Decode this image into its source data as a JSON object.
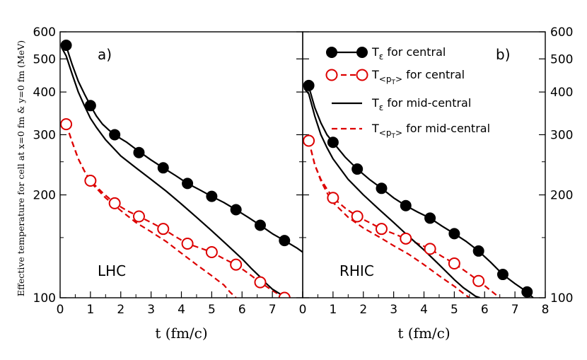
{
  "chart_data": {
    "type": "line",
    "y_scale": "log",
    "ylabel": "Effective temperature for cell at x=0 fm & y=0 fm (MeV)",
    "y_ticks": [
      100,
      200,
      300,
      400,
      500,
      600
    ],
    "ylim": [
      100,
      600
    ],
    "legend": {
      "position": "top-right",
      "entries": [
        {
          "main": "T",
          "sub": "ε",
          "suffix": " for central",
          "color": "#000000",
          "dash": "solid",
          "marker": "filled-circle"
        },
        {
          "main": "T",
          "sub": "<p",
          "subsub": "T",
          "subclose": ">",
          "suffix": " for central",
          "color": "#dd0000",
          "dash": "dashed",
          "marker": "open-circle"
        },
        {
          "main": "T",
          "sub": "ε",
          "suffix": " for mid-central",
          "color": "#000000",
          "dash": "solid",
          "marker": "none"
        },
        {
          "main": "T",
          "sub": "<p",
          "subsub": "T",
          "subclose": ">",
          "suffix": " for mid-central",
          "color": "#dd0000",
          "dash": "dashed",
          "marker": "none"
        }
      ]
    },
    "panels": [
      {
        "id": "a",
        "tag": "a)",
        "collider": "LHC",
        "xlabel": "t (fm/c)",
        "xlim": [
          0,
          8
        ],
        "x_tick_labels": [
          "0",
          "1",
          "2",
          "3",
          "4",
          "5",
          "6",
          "7"
        ],
        "series": [
          {
            "name": "T_eps central",
            "x": [
              0.05,
              0.2,
              0.4,
              0.6,
              0.8,
              1.0,
              1.2,
              1.4,
              1.6,
              1.8,
              2.0,
              2.2,
              2.6,
              3.0,
              3.4,
              3.8,
              4.2,
              4.6,
              5.0,
              5.4,
              5.8,
              6.2,
              6.6,
              7.0,
              7.4,
              7.8,
              8.0
            ],
            "y": [
              560,
              545,
              480,
              430,
              395,
              365,
              340,
              322,
              310,
              300,
              292,
              285,
              268,
              253,
              240,
              228,
              216,
              207,
              198,
              190,
              181,
              172,
              163,
              154,
              147,
              140,
              136
            ]
          },
          {
            "name": "T_pT central",
            "x": [
              0.2,
              0.4,
              0.6,
              0.8,
              1.0,
              1.4,
              1.8,
              2.2,
              2.6,
              3.0,
              3.4,
              3.8,
              4.2,
              4.6,
              5.0,
              5.4,
              5.8,
              6.2,
              6.6,
              7.0,
              7.4
            ],
            "y": [
              322,
              285,
              255,
              235,
              220,
              203,
              189,
              180,
              173,
              166,
              159,
              151,
              144,
              140,
              136,
              130,
              125,
              118,
              111,
              105,
              100
            ]
          },
          {
            "name": "T_eps mid-central",
            "x": [
              0.05,
              0.2,
              0.4,
              0.6,
              0.8,
              1.0,
              1.2,
              1.5,
              2.0,
              2.5,
              3.0,
              3.5,
              4.0,
              4.5,
              5.0,
              5.5,
              6.0,
              6.3,
              6.6,
              6.8,
              7.0,
              7.3,
              7.5
            ],
            "y": [
              540,
              510,
              450,
              400,
              365,
              335,
              315,
              290,
              260,
              240,
              222,
              205,
              188,
              172,
              157,
              143,
              130,
              122,
              115,
              110,
              106,
              102,
              100
            ]
          },
          {
            "name": "T_pT mid-central",
            "x": [
              0.2,
              0.4,
              0.6,
              0.8,
              1.0,
              1.5,
              2.0,
              2.5,
              3.0,
              3.5,
              4.0,
              4.5,
              5.0,
              5.4,
              5.6,
              5.8
            ],
            "y": [
              322,
              285,
              255,
              235,
              218,
              196,
              180,
              166,
              156,
              146,
              135,
              125,
              116,
              109,
              104,
              100
            ]
          }
        ],
        "markers": {
          "T_eps central": {
            "x": [
              0.2,
              1.0,
              1.8,
              2.6,
              3.4,
              4.2,
              5.0,
              5.8,
              6.6,
              7.4
            ],
            "y": [
              548,
              365,
              300,
              266,
              240,
              216,
              198,
              181,
              163,
              147
            ]
          },
          "T_pT central": {
            "x": [
              0.2,
              1.0,
              1.8,
              2.6,
              3.4,
              4.2,
              5.0,
              5.8,
              6.6,
              7.4
            ],
            "y": [
              322,
              220,
              189,
              173,
              159,
              144,
              136,
              125,
              111,
              100
            ]
          }
        }
      },
      {
        "id": "b",
        "tag": "b)",
        "collider": "RHIC",
        "xlabel": "t (fm/c)",
        "xlim": [
          0,
          8
        ],
        "x_tick_labels": [
          "0",
          "1",
          "2",
          "3",
          "4",
          "5",
          "6",
          "7",
          "8"
        ],
        "series": [
          {
            "name": "T_eps central",
            "x": [
              0.05,
              0.2,
              0.4,
              0.6,
              0.8,
              1.0,
              1.4,
              1.8,
              2.2,
              2.6,
              3.0,
              3.4,
              3.8,
              4.2,
              4.6,
              5.0,
              5.4,
              5.8,
              6.2,
              6.6,
              7.0,
              7.4,
              7.6
            ],
            "y": [
              425,
              415,
              360,
              325,
              300,
              285,
              258,
              238,
              222,
              209,
              196,
              186,
              178,
              171,
              162,
              154,
              146,
              137,
              127,
              117,
              110,
              104,
              100
            ]
          },
          {
            "name": "T_pT central",
            "x": [
              0.2,
              0.4,
              0.6,
              0.8,
              1.0,
              1.4,
              1.8,
              2.2,
              2.6,
              3.0,
              3.4,
              3.8,
              4.2,
              4.6,
              5.0,
              5.4,
              5.8,
              6.2,
              6.5
            ],
            "y": [
              288,
              245,
              222,
              208,
              196,
              183,
              173,
              166,
              159,
              154,
              149,
              144,
              139,
              132,
              126,
              119,
              112,
              105,
              100
            ]
          },
          {
            "name": "T_eps mid-central",
            "x": [
              0.05,
              0.2,
              0.4,
              0.6,
              0.8,
              1.0,
              1.5,
              2.0,
              2.5,
              3.0,
              3.5,
              4.0,
              4.5,
              5.0,
              5.3,
              5.5,
              5.7,
              5.85
            ],
            "y": [
              410,
              395,
              340,
              300,
              275,
              255,
              222,
              200,
              182,
              166,
              151,
              138,
              125,
              113,
              107,
              104,
              101,
              100
            ]
          },
          {
            "name": "T_pT mid-central",
            "x": [
              0.2,
              0.4,
              0.6,
              0.8,
              1.0,
              1.5,
              2.0,
              2.5,
              3.0,
              3.5,
              4.0,
              4.5,
              5.0,
              5.3,
              5.5
            ],
            "y": [
              288,
              245,
              220,
              203,
              190,
              172,
              160,
              151,
              142,
              134,
              125,
              116,
              108,
              103,
              100
            ]
          }
        ],
        "markers": {
          "T_eps central": {
            "x": [
              0.2,
              1.0,
              1.8,
              2.6,
              3.4,
              4.2,
              5.0,
              5.8,
              6.6,
              7.4
            ],
            "y": [
              418,
              285,
              238,
              209,
              186,
              171,
              154,
              137,
              117,
              104
            ]
          },
          "T_pT central": {
            "x": [
              0.2,
              1.0,
              1.8,
              2.6,
              3.4,
              4.2,
              5.0,
              5.8
            ],
            "y": [
              288,
              196,
              173,
              159,
              149,
              139,
              126,
              112
            ]
          }
        }
      }
    ]
  }
}
